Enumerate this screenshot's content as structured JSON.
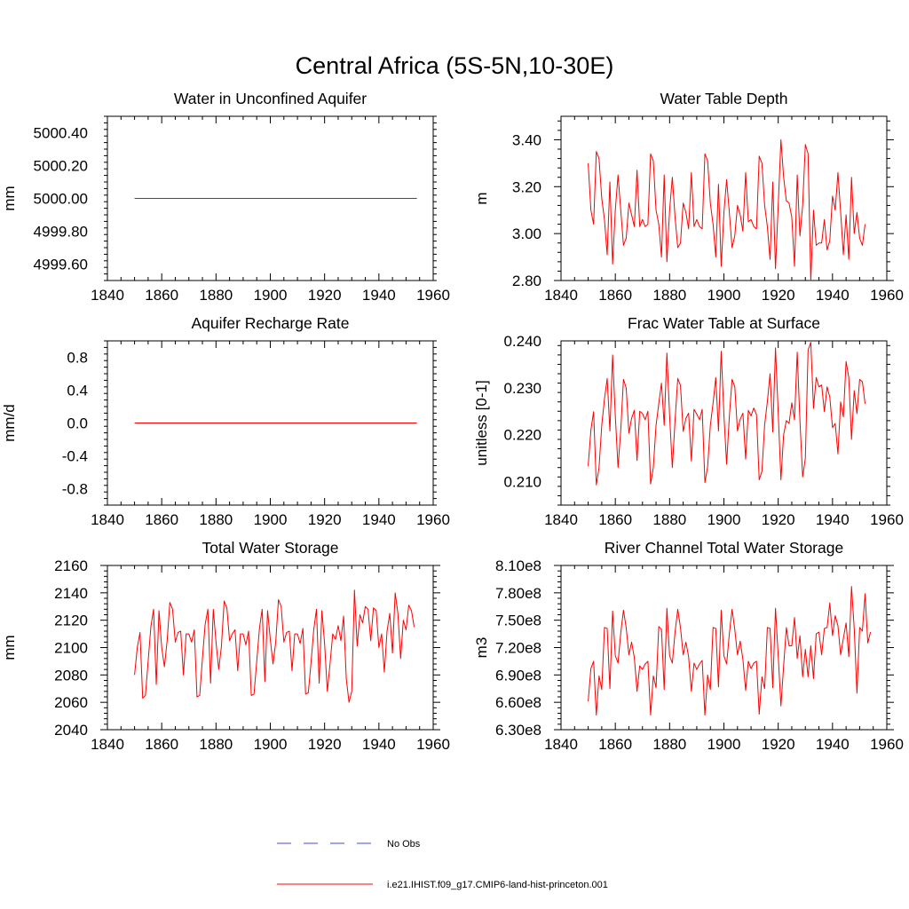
{
  "figure": {
    "title": "Central Africa (5S-5N,10-30E)"
  },
  "legend": [
    {
      "label": "No Obs",
      "color": "#4a4ad8",
      "style": "dashed"
    },
    {
      "label": "i.e21.IHIST.f09_g17.CMIP6-land-hist-princeton.001",
      "color": "#ff0000",
      "style": "solid"
    }
  ],
  "chart_data": [
    {
      "type": "line",
      "title": "Water in Unconfined Aquifer",
      "xlabel": "",
      "ylabel": "mm",
      "xlim": [
        1840,
        1960
      ],
      "ylim": [
        4999.5,
        5000.5
      ],
      "x_ticks": [
        1840,
        1860,
        1880,
        1900,
        1920,
        1940,
        1960
      ],
      "y_ticks": [
        4999.6,
        4999.8,
        5000.0,
        5000.2,
        5000.4
      ],
      "y_tick_labels": [
        "4999.60",
        "4999.80",
        "5000.00",
        "5000.20",
        "5000.40"
      ],
      "series": [
        {
          "x": [
            1850,
            1954
          ],
          "values": [
            5000.0,
            5000.0
          ]
        }
      ]
    },
    {
      "type": "line",
      "title": "Water Table Depth",
      "xlabel": "",
      "ylabel": "m",
      "xlim": [
        1840,
        1960
      ],
      "ylim": [
        2.8,
        3.5
      ],
      "x_ticks": [
        1840,
        1860,
        1880,
        1900,
        1920,
        1940,
        1960
      ],
      "y_ticks": [
        2.8,
        3.0,
        3.2,
        3.4
      ],
      "y_tick_labels": [
        "2.80",
        "3.00",
        "3.20",
        "3.40"
      ],
      "series": [
        {
          "x_start": 1850,
          "x_step": 1,
          "values": [
            3.3,
            3.1,
            3.04,
            3.35,
            3.32,
            3.15,
            3.06,
            2.91,
            3.22,
            2.87,
            3.1,
            3.25,
            3.1,
            2.95,
            2.98,
            3.13,
            3.08,
            3.03,
            3.27,
            3.03,
            3.06,
            3.03,
            3.04,
            3.34,
            3.31,
            3.1,
            3.04,
            2.9,
            3.25,
            2.88,
            3.1,
            3.24,
            3.07,
            2.94,
            2.96,
            3.13,
            3.09,
            3.02,
            3.26,
            3.03,
            3.06,
            3.03,
            3.02,
            3.34,
            3.31,
            3.13,
            3.04,
            2.9,
            3.21,
            2.86,
            3.09,
            3.23,
            3.09,
            2.94,
            2.99,
            3.12,
            3.08,
            3.01,
            3.26,
            3.05,
            3.06,
            3.03,
            3.02,
            3.33,
            3.3,
            3.12,
            3.03,
            2.89,
            3.22,
            2.85,
            3.12,
            3.4,
            3.24,
            3.14,
            3.13,
            3.07,
            2.86,
            3.25,
            2.99,
            3.12,
            3.38,
            3.34,
            2.8,
            3.1,
            2.95,
            2.96,
            2.96,
            3.06,
            2.93,
            2.97,
            3.16,
            3.1,
            3.26,
            3.09,
            2.91,
            3.08,
            2.89,
            3.24,
            3.0,
            3.09,
            2.98,
            2.95,
            3.04
          ]
        }
      ]
    },
    {
      "type": "line",
      "title": "Aquifer Recharge Rate",
      "xlabel": "",
      "ylabel": "mm/d",
      "xlim": [
        1840,
        1960
      ],
      "ylim": [
        -1.0,
        1.0
      ],
      "x_ticks": [
        1840,
        1860,
        1880,
        1900,
        1920,
        1940,
        1960
      ],
      "y_ticks": [
        -0.8,
        -0.4,
        0.0,
        0.4,
        0.8
      ],
      "y_tick_labels": [
        "-0.8",
        "-0.4",
        "0.0",
        "0.4",
        "0.8"
      ],
      "series": [
        {
          "x": [
            1850,
            1954
          ],
          "values": [
            0.0,
            0.0
          ]
        }
      ]
    },
    {
      "type": "line",
      "title": "Frac Water Table at Surface",
      "xlabel": "",
      "ylabel": "unitless [0-1]",
      "xlim": [
        1840,
        1960
      ],
      "ylim": [
        0.205,
        0.24
      ],
      "x_ticks": [
        1840,
        1860,
        1880,
        1900,
        1920,
        1940,
        1960
      ],
      "y_ticks": [
        0.21,
        0.22,
        0.23,
        0.24
      ],
      "y_tick_labels": [
        "0.210",
        "0.220",
        "0.230",
        "0.240"
      ],
      "series": [
        {
          "x_start": 1850,
          "x_step": 1,
          "values": [
            0.2133,
            0.221,
            0.2249,
            0.2093,
            0.213,
            0.222,
            0.2276,
            0.232,
            0.2208,
            0.237,
            0.224,
            0.213,
            0.221,
            0.2318,
            0.23,
            0.2203,
            0.2235,
            0.2252,
            0.2145,
            0.225,
            0.2245,
            0.2232,
            0.225,
            0.2095,
            0.213,
            0.222,
            0.2266,
            0.231,
            0.222,
            0.2374,
            0.224,
            0.213,
            0.223,
            0.232,
            0.2305,
            0.2207,
            0.2235,
            0.2246,
            0.2144,
            0.2254,
            0.2244,
            0.2232,
            0.2254,
            0.2098,
            0.2132,
            0.222,
            0.2267,
            0.2322,
            0.2208,
            0.2378,
            0.2242,
            0.2137,
            0.2239,
            0.2318,
            0.2303,
            0.2208,
            0.2233,
            0.2246,
            0.2148,
            0.2252,
            0.224,
            0.2257,
            0.2243,
            0.2104,
            0.2122,
            0.2221,
            0.227,
            0.233,
            0.2206,
            0.2385,
            0.2247,
            0.2104,
            0.22,
            0.223,
            0.2224,
            0.2268,
            0.2232,
            0.2376,
            0.223,
            0.211,
            0.215,
            0.238,
            0.2397,
            0.2256,
            0.2322,
            0.2302,
            0.2306,
            0.2249,
            0.2302,
            0.228,
            0.2215,
            0.2224,
            0.2159,
            0.227,
            0.2238,
            0.2356,
            0.2322,
            0.219,
            0.2294,
            0.2245,
            0.2318,
            0.2313,
            0.2266
          ]
        }
      ]
    },
    {
      "type": "line",
      "title": "Total Water Storage",
      "xlabel": "",
      "ylabel": "mm",
      "xlim": [
        1840,
        1960
      ],
      "ylim": [
        2040,
        2160
      ],
      "x_ticks": [
        1840,
        1860,
        1880,
        1900,
        1920,
        1940,
        1960
      ],
      "y_ticks": [
        2040,
        2060,
        2080,
        2100,
        2120,
        2140,
        2160
      ],
      "y_tick_labels": [
        "2040",
        "2060",
        "2080",
        "2100",
        "2120",
        "2140",
        "2160"
      ],
      "series": [
        {
          "x_start": 1850,
          "x_step": 1,
          "values": [
            2080,
            2100,
            2111,
            2063,
            2065,
            2090,
            2115,
            2128,
            2073,
            2127,
            2100,
            2086,
            2105,
            2133,
            2128,
            2104,
            2111,
            2112,
            2080,
            2110,
            2110,
            2104,
            2113,
            2064,
            2065,
            2092,
            2117,
            2128,
            2074,
            2128,
            2104,
            2084,
            2101,
            2134,
            2129,
            2105,
            2110,
            2113,
            2083,
            2110,
            2110,
            2102,
            2112,
            2065,
            2066,
            2090,
            2114,
            2128,
            2075,
            2127,
            2106,
            2088,
            2104,
            2135,
            2130,
            2104,
            2111,
            2112,
            2083,
            2110,
            2110,
            2103,
            2114,
            2066,
            2067,
            2089,
            2113,
            2128,
            2074,
            2127,
            2103,
            2068,
            2088,
            2110,
            2106,
            2116,
            2105,
            2123,
            2077,
            2060,
            2068,
            2142,
            2101,
            2124,
            2118,
            2130,
            2128,
            2105,
            2129,
            2127,
            2100,
            2110,
            2082,
            2112,
            2125,
            2096,
            2140,
            2125,
            2092,
            2120,
            2113,
            2131,
            2127,
            2115
          ]
        }
      ]
    },
    {
      "type": "line",
      "title": "River Channel Total Water Storage",
      "xlabel": "",
      "ylabel": "m3",
      "xlim": [
        1840,
        1960
      ],
      "ylim": [
        630000000,
        810000000
      ],
      "x_ticks": [
        1840,
        1860,
        1880,
        1900,
        1920,
        1940,
        1960
      ],
      "y_ticks": [
        630000000,
        660000000,
        690000000,
        720000000,
        750000000,
        780000000,
        810000000
      ],
      "y_tick_labels": [
        "6.30e8",
        "6.60e8",
        "6.90e8",
        "7.20e8",
        "7.50e8",
        "7.80e8",
        "8.10e8"
      ],
      "series": [
        {
          "x_start": 1850,
          "x_step": 1,
          "values": [
            661000000,
            697000000,
            705000000,
            646000000,
            689000000,
            674000000,
            742000000,
            741000000,
            675000000,
            760000000,
            711000000,
            703000000,
            736000000,
            761000000,
            742000000,
            712000000,
            726000000,
            709000000,
            672000000,
            700000000,
            696000000,
            702000000,
            705000000,
            646000000,
            689000000,
            676000000,
            743000000,
            740000000,
            674000000,
            763000000,
            711000000,
            703000000,
            737000000,
            762000000,
            742000000,
            712000000,
            726000000,
            710000000,
            672000000,
            703000000,
            696000000,
            702000000,
            706000000,
            646000000,
            690000000,
            674000000,
            742000000,
            741000000,
            677000000,
            761000000,
            711000000,
            702000000,
            735000000,
            762000000,
            740000000,
            712000000,
            727000000,
            707000000,
            673000000,
            705000000,
            697000000,
            703000000,
            705000000,
            647000000,
            688000000,
            675000000,
            742000000,
            741000000,
            676000000,
            763000000,
            711000000,
            656000000,
            700000000,
            742000000,
            722000000,
            722000000,
            753000000,
            708000000,
            733000000,
            688000000,
            718000000,
            688000000,
            722000000,
            686000000,
            735000000,
            737000000,
            712000000,
            741000000,
            742000000,
            769000000,
            733000000,
            755000000,
            744000000,
            712000000,
            730000000,
            747000000,
            710000000,
            787000000,
            741000000,
            670000000,
            742000000,
            738000000,
            779000000,
            725000000,
            737000000
          ]
        }
      ]
    }
  ]
}
